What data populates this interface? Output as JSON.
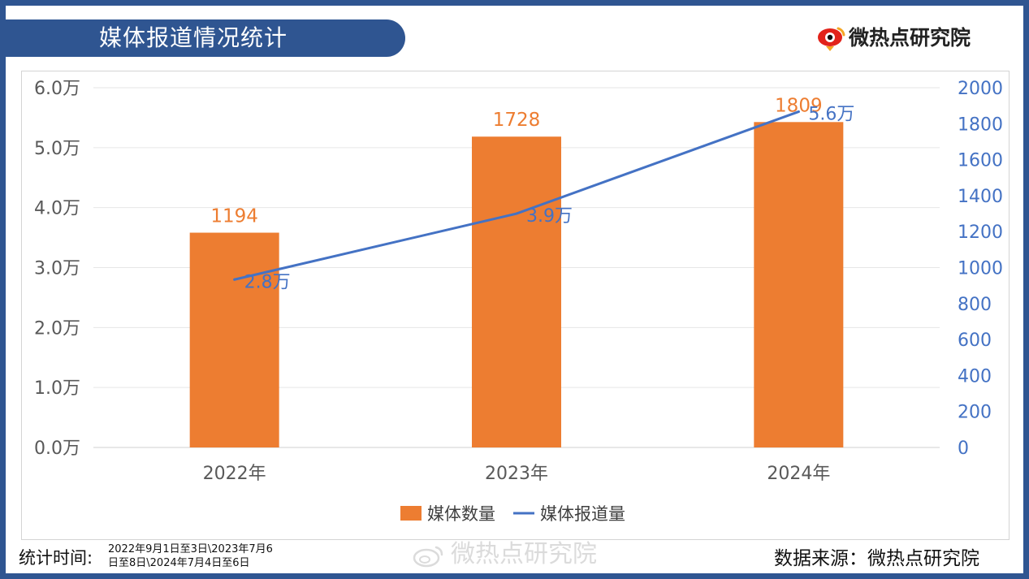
{
  "header": {
    "title": "媒体报道情况统计",
    "brand_name": "微热点研究院",
    "brand_logo_icon": "weibo-eye-logo-icon"
  },
  "colors": {
    "frame": "#2f5591",
    "bar": "#ed7d31",
    "line": "#4472c4",
    "grid": "#e6e6e6"
  },
  "chart_data": {
    "type": "bar",
    "categories": [
      "2022年",
      "2023年",
      "2024年"
    ],
    "series": [
      {
        "name": "媒体数量",
        "kind": "bar",
        "axis": "right",
        "values": [
          1194,
          1728,
          1809
        ],
        "value_labels": [
          "1194",
          "1728",
          "1809"
        ]
      },
      {
        "name": "媒体报道量",
        "kind": "line",
        "axis": "left",
        "values": [
          2.8,
          3.9,
          5.6
        ],
        "value_unit": "万",
        "value_labels": [
          "2.8万",
          "3.9万",
          "5.6万"
        ]
      }
    ],
    "left_axis": {
      "range": [
        0,
        6
      ],
      "ticks": [
        "0.0万",
        "1.0万",
        "2.0万",
        "3.0万",
        "4.0万",
        "5.0万",
        "6.0万"
      ]
    },
    "right_axis": {
      "range": [
        0,
        2000
      ],
      "ticks": [
        "0",
        "200",
        "400",
        "600",
        "800",
        "1000",
        "1200",
        "1400",
        "1600",
        "1800",
        "2000"
      ]
    },
    "grid": true,
    "legend_position": "bottom"
  },
  "footer": {
    "time_label": "统计时间:",
    "time_lines": [
      "2022年9月1日至3日\\2023年7月6",
      "日至8日\\2024年7月4日至6日"
    ],
    "watermark": "微热点研究院",
    "watermark_icon": "weibo-icon",
    "source": "数据来源：微热点研究院"
  }
}
